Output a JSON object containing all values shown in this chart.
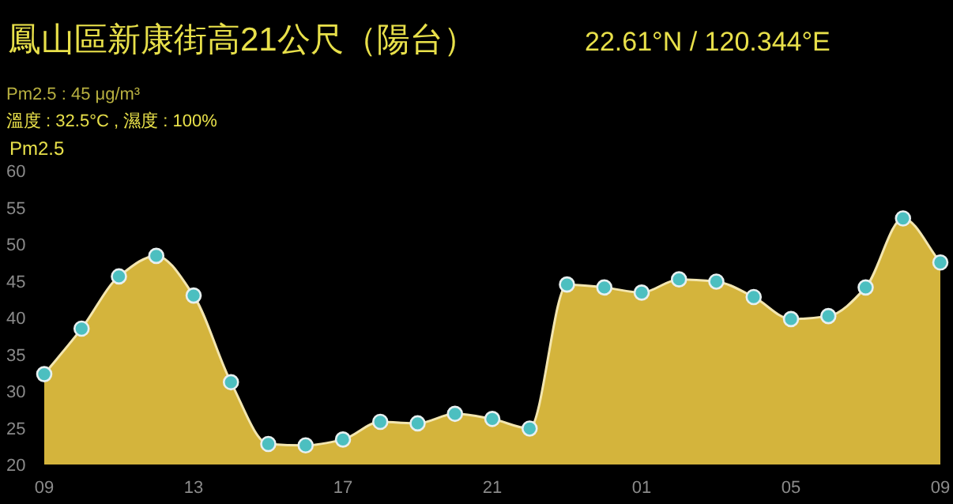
{
  "chart_data": {
    "type": "area",
    "title": "鳳山區新康街高21公尺（陽台）",
    "subtitle": "22.61°N / 120.344°E",
    "ylabel": "Pm2.5",
    "annotations": [
      "Pm2.5 : 45 μg/m³",
      "溫度 : 32.5°C , 濕度 : 100%"
    ],
    "categories": [
      "09",
      null,
      null,
      null,
      "13",
      null,
      null,
      null,
      "17",
      null,
      null,
      null,
      "21",
      null,
      null,
      null,
      "01",
      null,
      null,
      null,
      "05",
      null,
      null,
      null,
      "09"
    ],
    "series": [
      {
        "color": "#d4b43c",
        "values": [
          32.3,
          38.5,
          45.6,
          48.4,
          43,
          31.2,
          22.8,
          22.6,
          23.4,
          25.8,
          25.6,
          26.9,
          26.2,
          24.9,
          44.5,
          44.1,
          43.4,
          45.2,
          44.9,
          42.8,
          39.8,
          40.2,
          44.1,
          53.5,
          47.5
        ]
      }
    ],
    "ylim": [
      20,
      60
    ],
    "yticks": [
      20,
      25,
      30,
      35,
      40,
      45,
      50,
      55,
      60
    ],
    "marker": "circle",
    "grid": false
  }
}
